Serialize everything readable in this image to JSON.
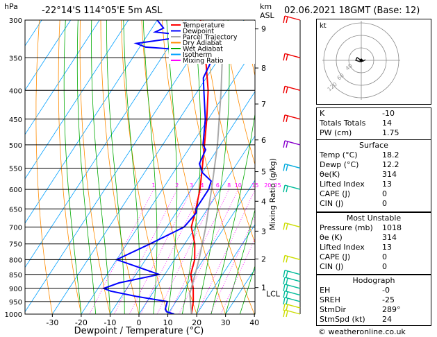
{
  "header": {
    "pressure_unit": "hPa",
    "location": "-22°14'S  114°05'E  5m  ASL",
    "km_unit": "km",
    "asl": "ASL",
    "datetime": "02.06.2021  18GMT  (Base: 12)"
  },
  "chart_data": {
    "type": "skew-t",
    "xlabel": "Dewpoint / Temperature (°C)",
    "ylabel": "hPa",
    "mixing_ratio_label": "Mixing Ratio (g/kg)",
    "x_ticks": [
      -30,
      -20,
      -10,
      0,
      10,
      20,
      30,
      40
    ],
    "xlim": [
      -35,
      40
    ],
    "p_levels": [
      300,
      350,
      400,
      450,
      500,
      550,
      600,
      650,
      700,
      750,
      800,
      850,
      900,
      950,
      1000
    ],
    "ylim": [
      1000,
      300
    ],
    "km_ticks": [
      {
        "km": "9",
        "p": 311
      },
      {
        "km": "8",
        "p": 365
      },
      {
        "km": "7",
        "p": 423
      },
      {
        "km": "6",
        "p": 490
      },
      {
        "km": "5",
        "p": 558
      },
      {
        "km": "4",
        "p": 630
      },
      {
        "km": "3",
        "p": 712
      },
      {
        "km": "2",
        "p": 798
      },
      {
        "km": "1",
        "p": 897
      }
    ],
    "lcl": {
      "label": "LCL",
      "p": 920
    },
    "mixing_ratios": [
      "1",
      "2",
      "3",
      "4",
      "6",
      "8",
      "10",
      "15",
      "20",
      "25"
    ],
    "legend": [
      {
        "name": "Temperature",
        "color": "#ff0000"
      },
      {
        "name": "Dewpoint",
        "color": "#0000ff"
      },
      {
        "name": "Parcel Trajectory",
        "color": "#aaaaaa"
      },
      {
        "name": "Dry Adiabat",
        "color": "#ff8c00"
      },
      {
        "name": "Wet Adiabat",
        "color": "#00aa00"
      },
      {
        "name": "Isotherm",
        "color": "#00a0ff"
      },
      {
        "name": "Mixing Ratio",
        "color": "#ff00ff"
      }
    ],
    "series": [
      {
        "name": "Temperature",
        "color": "#ff0000",
        "points": [
          [
            1000,
            18.2
          ],
          [
            950,
            16
          ],
          [
            900,
            13
          ],
          [
            850,
            9
          ],
          [
            800,
            7
          ],
          [
            750,
            3.5
          ],
          [
            700,
            -1.5
          ],
          [
            650,
            -4
          ],
          [
            600,
            -7
          ],
          [
            550,
            -11
          ],
          [
            500,
            -15.5
          ],
          [
            450,
            -20.5
          ],
          [
            400,
            -26.5
          ],
          [
            360,
            -33
          ],
          [
            340,
            -37
          ],
          [
            300,
            -45
          ]
        ]
      },
      {
        "name": "Dewpoint",
        "color": "#0000ff",
        "points": [
          [
            1000,
            12.2
          ],
          [
            990,
            9
          ],
          [
            980,
            8
          ],
          [
            950,
            7
          ],
          [
            930,
            -5
          ],
          [
            910,
            -15
          ],
          [
            900,
            -18
          ],
          [
            880,
            -14
          ],
          [
            850,
            -2
          ],
          [
            800,
            -20
          ],
          [
            750,
            -12
          ],
          [
            700,
            -4
          ],
          [
            660,
            -3
          ],
          [
            650,
            -4
          ],
          [
            600,
            -4
          ],
          [
            580,
            -5
          ],
          [
            560,
            -10
          ],
          [
            540,
            -13
          ],
          [
            510,
            -14
          ],
          [
            500,
            -16
          ],
          [
            450,
            -21
          ],
          [
            400,
            -28
          ],
          [
            380,
            -31
          ],
          [
            355,
            -32
          ],
          [
            340,
            -40
          ],
          [
            335,
            -58
          ],
          [
            330,
            -62
          ],
          [
            320,
            -45
          ],
          [
            315,
            -58
          ],
          [
            310,
            -56
          ],
          [
            300,
            -60
          ]
        ]
      },
      {
        "name": "Parcel Trajectory",
        "color": "#aaaaaa",
        "points": [
          [
            1000,
            18.2
          ],
          [
            920,
            13
          ],
          [
            850,
            10.5
          ],
          [
            800,
            8.5
          ],
          [
            700,
            3.5
          ],
          [
            600,
            -3
          ],
          [
            500,
            -11
          ],
          [
            400,
            -22
          ],
          [
            300,
            -37
          ]
        ]
      }
    ],
    "winds": [
      {
        "p": 1000,
        "color": "#ccdd00"
      },
      {
        "p": 975,
        "color": "#ccdd00"
      },
      {
        "p": 950,
        "color": "#00bb99"
      },
      {
        "p": 925,
        "color": "#00bb99"
      },
      {
        "p": 900,
        "color": "#00bb99"
      },
      {
        "p": 875,
        "color": "#00bb99"
      },
      {
        "p": 850,
        "color": "#00bb99"
      },
      {
        "p": 800,
        "color": "#ccdd00"
      },
      {
        "p": 700,
        "color": "#ccdd00"
      },
      {
        "p": 600,
        "color": "#00bb99"
      },
      {
        "p": 550,
        "color": "#00aadd"
      },
      {
        "p": 500,
        "color": "#8800cc"
      },
      {
        "p": 450,
        "color": "#ee0000"
      },
      {
        "p": 400,
        "color": "#ee0000"
      },
      {
        "p": 350,
        "color": "#ee0000"
      },
      {
        "p": 300,
        "color": "#ee0000"
      }
    ]
  },
  "hodograph": {
    "unit": "kt",
    "ring_labels": [
      "40",
      "60",
      "120"
    ]
  },
  "indices": {
    "rows": [
      {
        "key": "K",
        "value": "-10"
      },
      {
        "key": "Totals Totals",
        "value": "14"
      },
      {
        "key": "PW (cm)",
        "value": "1.75"
      }
    ]
  },
  "surface": {
    "title": "Surface",
    "rows": [
      {
        "key": "Temp (°C)",
        "value": "18.2"
      },
      {
        "key": "Dewp (°C)",
        "value": "12.2"
      },
      {
        "key": "θe(K)",
        "value": "314"
      },
      {
        "key": "Lifted Index",
        "value": "13"
      },
      {
        "key": "CAPE (J)",
        "value": "0"
      },
      {
        "key": "CIN (J)",
        "value": "0"
      }
    ]
  },
  "most_unstable": {
    "title": "Most Unstable",
    "rows": [
      {
        "key": "Pressure (mb)",
        "value": "1018"
      },
      {
        "key": "θe (K)",
        "value": "314"
      },
      {
        "key": "Lifted Index",
        "value": "13"
      },
      {
        "key": "CAPE (J)",
        "value": "0"
      },
      {
        "key": "CIN (J)",
        "value": "0"
      }
    ]
  },
  "hodo_params": {
    "title": "Hodograph",
    "rows": [
      {
        "key": "EH",
        "value": "-0"
      },
      {
        "key": "SREH",
        "value": "-25"
      },
      {
        "key": "StmDir",
        "value": "289°"
      },
      {
        "key": "StmSpd (kt)",
        "value": "24"
      }
    ]
  },
  "footer": {
    "credit": "© weatheronline.co.uk"
  }
}
